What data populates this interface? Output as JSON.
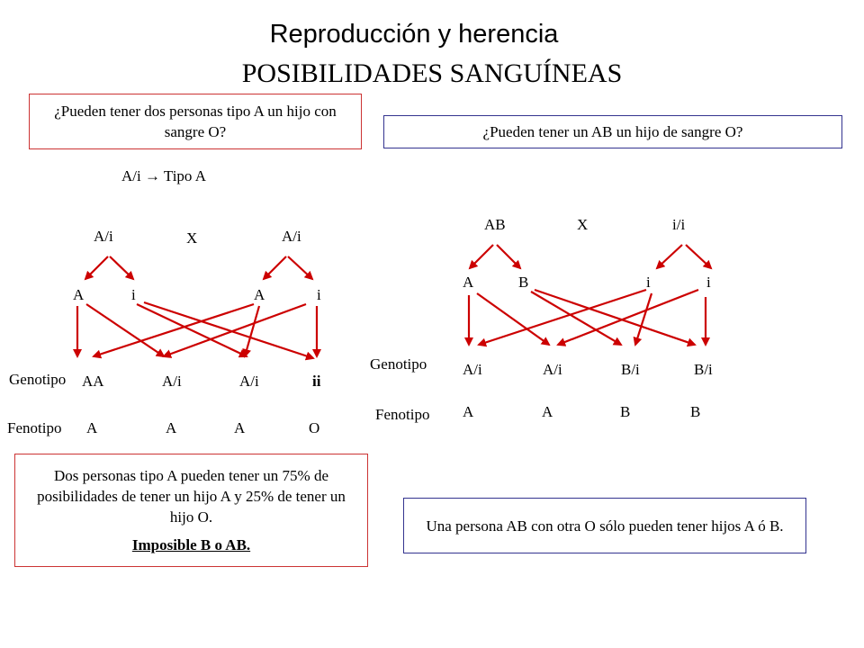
{
  "title": "Reproducción y herencia",
  "subtitle": "POSIBILIDADES SANGUÍNEAS",
  "left": {
    "question": "¿Pueden tener dos personas tipo A un hijo con sangre O?",
    "definition": "A/i  → Tipo A",
    "parent1": "A/i",
    "cross": "X",
    "parent2": "A/i",
    "gametes": [
      "A",
      "i",
      "A",
      "i"
    ],
    "genotipo_label": "Genotipo",
    "genotypes": [
      "AA",
      "A/i",
      "A/i",
      "ii"
    ],
    "fenotipo_label": "Fenotipo",
    "phenotypes": [
      "A",
      "A",
      "A",
      "O"
    ],
    "conclusion": "Dos personas tipo A pueden tener un 75% de posibilidades de tener un hijo A y 25% de tener un hijo O.",
    "conclusion_bold": "Imposible B o AB."
  },
  "right": {
    "question": "¿Pueden tener un AB un hijo de sangre O?",
    "parent1": "AB",
    "cross": "X",
    "parent2": "i/i",
    "gametes": [
      "A",
      "B",
      "i",
      "i"
    ],
    "genotipo_label": "Genotipo",
    "genotypes": [
      "A/i",
      "A/i",
      "B/i",
      "B/i"
    ],
    "fenotipo_label": "Fenotipo",
    "phenotypes": [
      "A",
      "A",
      "B",
      "B"
    ],
    "conclusion": "Una persona AB con otra O sólo pueden tener hijos A ó B."
  },
  "colors": {
    "arrow": "#cc0000",
    "red_border": "#cc3333",
    "blue_border": "#33338f"
  }
}
